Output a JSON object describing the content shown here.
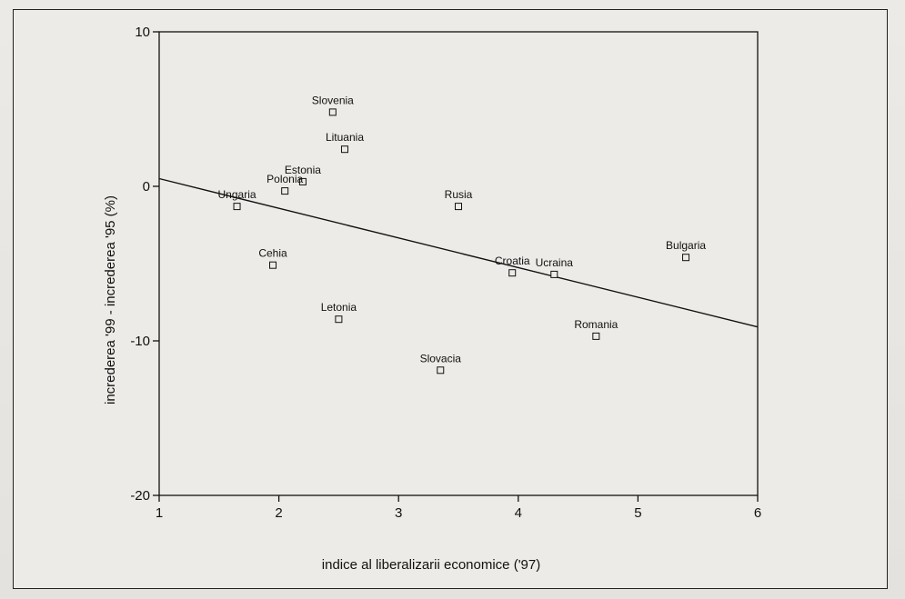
{
  "chart_data": {
    "type": "scatter",
    "title": "",
    "xlabel": "indice al liberalizarii economice ('97)",
    "ylabel": "increderea '99 - increderea '95 (%)",
    "xlim": [
      1,
      6
    ],
    "ylim": [
      -20,
      10
    ],
    "x_ticks": [
      "1",
      "2",
      "3",
      "4",
      "5",
      "6"
    ],
    "y_ticks": [
      "10",
      "0",
      "-10",
      "-20"
    ],
    "points": [
      {
        "label": "Slovenia",
        "x": 2.45,
        "y": 4.8
      },
      {
        "label": "Lituania",
        "x": 2.55,
        "y": 2.4
      },
      {
        "label": "Estonia",
        "x": 2.2,
        "y": 0.3
      },
      {
        "label": "Polonia",
        "x": 2.05,
        "y": -0.3
      },
      {
        "label": "Ungaria",
        "x": 1.65,
        "y": -1.3
      },
      {
        "label": "Rusia",
        "x": 3.5,
        "y": -1.3
      },
      {
        "label": "Cehia",
        "x": 1.95,
        "y": -5.1
      },
      {
        "label": "Croatia",
        "x": 3.95,
        "y": -5.6
      },
      {
        "label": "Ucraina",
        "x": 4.3,
        "y": -5.7
      },
      {
        "label": "Bulgaria",
        "x": 5.4,
        "y": -4.6
      },
      {
        "label": "Letonia",
        "x": 2.5,
        "y": -8.6
      },
      {
        "label": "Romania",
        "x": 4.65,
        "y": -9.7
      },
      {
        "label": "Slovacia",
        "x": 3.35,
        "y": -11.9
      }
    ],
    "fit_line": {
      "x": [
        1,
        6
      ],
      "y": [
        0.5,
        -9.1
      ]
    },
    "grid": false,
    "legend": "none",
    "colors": {
      "ink": "#111111",
      "marker_fill": "#ecebe7"
    }
  }
}
